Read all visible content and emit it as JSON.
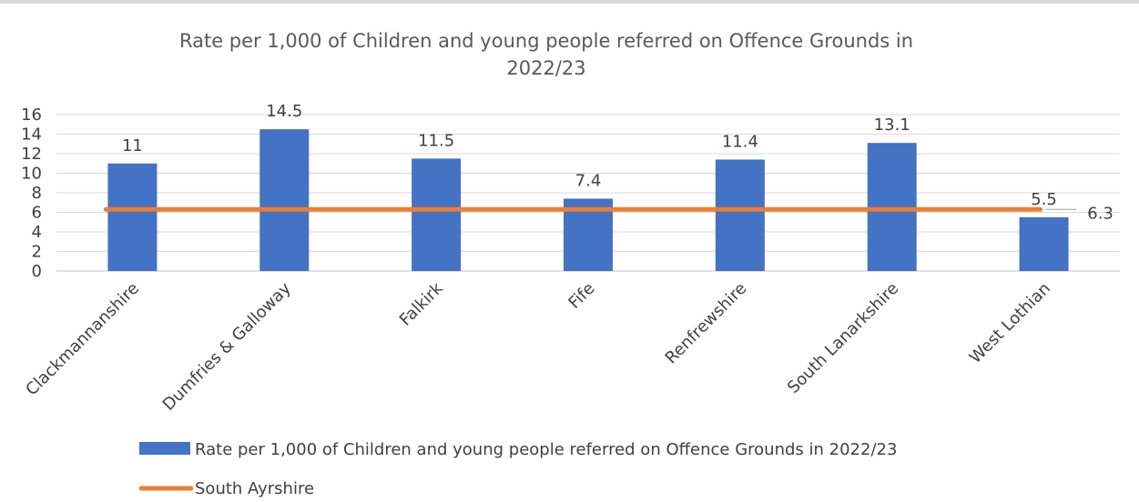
{
  "chart_data": {
    "type": "bar",
    "title_line1": "Rate per 1,000 of Children and young people referred  on Offence Grounds in",
    "title_line2": "2022/23",
    "categories": [
      "Clackmannanshire",
      "Dumfries & Galloway",
      "Falkirk",
      "Fife",
      "Renfrewshire",
      "South Lanarkshire",
      "West Lothian"
    ],
    "series": [
      {
        "name": "Rate per 1,000 of Children and young people referred on Offence Grounds in 2022/23",
        "type": "bar",
        "color": "#4472c4",
        "values": [
          11,
          14.5,
          11.5,
          7.4,
          11.4,
          13.1,
          5.5
        ],
        "labels": [
          "11",
          "14.5",
          "11.5",
          "7.4",
          "11.4",
          "13.1",
          "5.5"
        ]
      },
      {
        "name": "South Ayrshire",
        "type": "line",
        "color": "#ed7d31",
        "value": 6.3,
        "label": "6.3"
      }
    ],
    "yticks": [
      "0",
      "2",
      "4",
      "6",
      "8",
      "10",
      "12",
      "14",
      "16"
    ],
    "ylim": [
      0,
      16
    ],
    "grid": true,
    "legend_position": "bottom"
  }
}
